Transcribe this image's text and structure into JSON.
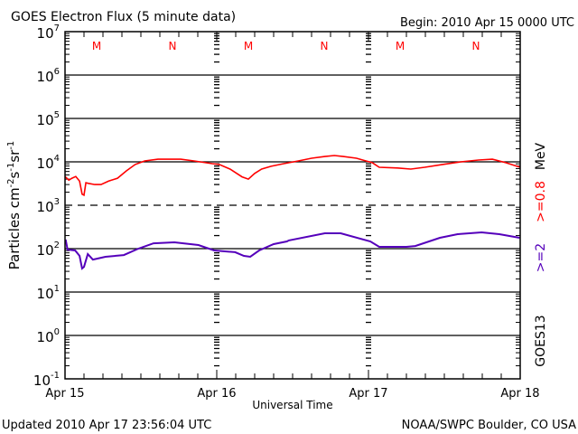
{
  "header": {
    "title": "GOES Electron Flux (5 minute data)",
    "begin": "Begin: 2010 Apr 15 0000 UTC"
  },
  "footer": {
    "updated": "Updated 2010 Apr 17 23:56:04 UTC",
    "source": "NOAA/SWPC Boulder, CO USA"
  },
  "chart_data": {
    "type": "line",
    "title": "GOES Electron Flux (5 minute data)",
    "xlabel": "Universal Time",
    "ylabel": "Particles cm-2s-1sr-1",
    "ylabel_parts": {
      "base": "Particles cm",
      "e1": "-2",
      "mid1": "s",
      "e2": "-1",
      "mid2": "sr",
      "e3": "-1"
    },
    "x_unit": "hours since 2010 Apr 15 0000 UTC",
    "xlim": [
      0,
      72
    ],
    "ylim": [
      0.1,
      10000000
    ],
    "yscale": "log",
    "y_ticks": [
      {
        "base": "10",
        "exp": "7"
      },
      {
        "base": "10",
        "exp": "6"
      },
      {
        "base": "10",
        "exp": "5"
      },
      {
        "base": "10",
        "exp": "4"
      },
      {
        "base": "10",
        "exp": "3"
      },
      {
        "base": "10",
        "exp": "2"
      },
      {
        "base": "10",
        "exp": "1"
      },
      {
        "base": "10",
        "exp": "0"
      },
      {
        "base": "10",
        "exp": "-1"
      }
    ],
    "x_ticks": [
      {
        "hour": 0,
        "label": "Apr 15"
      },
      {
        "hour": 24,
        "label": "Apr 16"
      },
      {
        "hour": 48,
        "label": "Apr 17"
      },
      {
        "hour": 72,
        "label": "Apr 18"
      }
    ],
    "threshold": {
      "value": 1000,
      "style": "dashed"
    },
    "markers": [
      {
        "hour": 5,
        "label": "M"
      },
      {
        "hour": 17,
        "label": "N"
      },
      {
        "hour": 29,
        "label": "M"
      },
      {
        "hour": 41,
        "label": "N"
      },
      {
        "hour": 53,
        "label": "M"
      },
      {
        "hour": 65,
        "label": "N"
      }
    ],
    "right_labels": {
      "satellite": "GOES13",
      "s2": ">=2",
      "s1": ">=0.8",
      "unit": "MeV"
    },
    "series": [
      {
        "name": ">=0.8 MeV",
        "color": "#ff0000",
        "x": [
          0,
          0.6,
          1.1,
          1.7,
          2.3,
          2.7,
          3.0,
          3.3,
          3.7,
          4.7,
          5.7,
          6.9,
          8.3,
          9.7,
          11.1,
          12.6,
          14.7,
          16.9,
          18.3,
          20.4,
          23.3,
          24.4,
          26.1,
          28,
          29,
          30,
          31.1,
          32.6,
          34.6,
          36.9,
          39,
          41.1,
          42.6,
          44,
          46.1,
          47.6,
          48.6,
          49.7,
          52.6,
          54.7,
          56.9,
          59.7,
          62.6,
          65.4,
          67.6,
          69.7,
          72
        ],
        "y": [
          4600,
          3800,
          4200,
          4600,
          3600,
          1800,
          1700,
          3300,
          3200,
          3000,
          3000,
          3600,
          4200,
          6200,
          8700,
          10500,
          11500,
          11500,
          11500,
          10500,
          9100,
          8700,
          6800,
          4500,
          4000,
          5400,
          6800,
          7900,
          9100,
          10500,
          12100,
          13300,
          14000,
          13300,
          12100,
          10500,
          9600,
          7500,
          7200,
          6800,
          7500,
          8700,
          10000,
          11000,
          11500,
          9600,
          7500
        ]
      },
      {
        "name": ">=2 MeV",
        "color": "#5500bb",
        "x": [
          0.1,
          0.4,
          1.6,
          2.3,
          2.7,
          3.0,
          3.6,
          4.4,
          6.4,
          9.3,
          11.6,
          14,
          17.3,
          21.1,
          23.6,
          26.9,
          28.3,
          29.3,
          30.7,
          33,
          35.1,
          35.4,
          41.1,
          43.6,
          48.3,
          49.7,
          54,
          55.4,
          59.3,
          62.1,
          65.9,
          68.7,
          71.9
        ],
        "y": [
          162,
          95,
          91,
          68,
          35,
          38,
          75,
          56,
          65,
          71,
          100,
          133,
          140,
          121,
          91,
          83,
          68,
          65,
          91,
          127,
          147,
          155,
          226,
          226,
          147,
          110,
          110,
          115,
          178,
          215,
          237,
          215,
          178
        ]
      }
    ]
  }
}
